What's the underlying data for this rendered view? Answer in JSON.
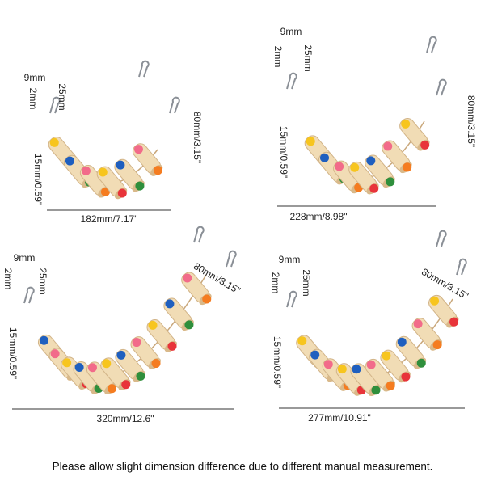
{
  "panels": [
    {
      "gap": "9mm",
      "height": "25mm",
      "thickness": "2mm",
      "rung": "15mm/0.59\"",
      "drop": "80mm/3.15\"",
      "width": "182mm/7.17\""
    },
    {
      "gap": "9mm",
      "height": "25mm",
      "thickness": "2mm",
      "rung": "15mm/0.59\"",
      "drop": "80mm/3.15\"",
      "width": "228mm/8.98\""
    },
    {
      "gap": "9mm",
      "height": "25mm",
      "thickness": "2mm",
      "rung": "15mm/0.59\"",
      "drop": "80mm/3.15\"",
      "width": "320mm/12.6\""
    },
    {
      "gap": "9mm",
      "height": "25mm",
      "thickness": "2mm",
      "rung": "15mm/0.59\"",
      "drop": "80mm/3.15\"",
      "width": "277mm/10.91\""
    }
  ],
  "footer": {
    "note": "Please allow slight dimension difference due to different manual measurement."
  }
}
